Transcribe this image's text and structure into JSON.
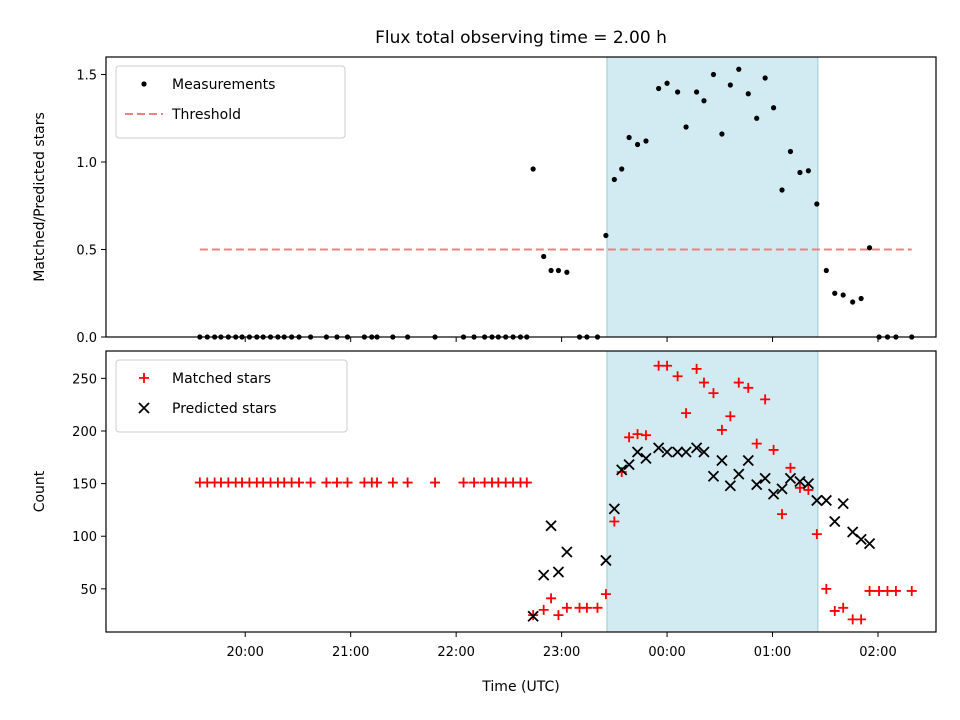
{
  "chart_data": {
    "title": "Flux total observing time = 2.00 h",
    "xlabel": "Time (UTC)",
    "x_unit": "hours of day (UTC), 24.00 = 00:00 next day",
    "xlim": [
      18.68,
      26.55
    ],
    "xticks": [
      {
        "value": 20,
        "label": "20:00"
      },
      {
        "value": 21,
        "label": "21:00"
      },
      {
        "value": 22,
        "label": "22:00"
      },
      {
        "value": 23,
        "label": "23:00"
      },
      {
        "value": 24,
        "label": "00:00"
      },
      {
        "value": 25,
        "label": "01:00"
      },
      {
        "value": 26,
        "label": "02:00"
      }
    ],
    "observing_window": {
      "start": 23.43,
      "end": 25.43,
      "color": "#add8e6"
    },
    "panels": [
      {
        "type": "scatter",
        "ylabel": "Matched/Predicted stars",
        "ylim": [
          0,
          1.6
        ],
        "yticks": [
          0.0,
          0.5,
          1.0,
          1.5
        ],
        "yticklabels": [
          "0.0",
          "0.5",
          "1.0",
          "1.5"
        ],
        "legend": "top-left",
        "threshold": {
          "name": "Threshold",
          "value": 0.5,
          "color": "#f08080",
          "x_range": [
            19.57,
            26.32
          ]
        },
        "series": [
          {
            "name": "Measurements",
            "marker": "dot",
            "color": "#000000",
            "points": [
              [
                19.57,
                0
              ],
              [
                19.64,
                0
              ],
              [
                19.71,
                0
              ],
              [
                19.77,
                0
              ],
              [
                19.84,
                0
              ],
              [
                19.91,
                0
              ],
              [
                19.97,
                0
              ],
              [
                20.04,
                0
              ],
              [
                20.11,
                0
              ],
              [
                20.17,
                0
              ],
              [
                20.24,
                0
              ],
              [
                20.31,
                0
              ],
              [
                20.37,
                0
              ],
              [
                20.44,
                0
              ],
              [
                20.51,
                0
              ],
              [
                20.62,
                0
              ],
              [
                20.77,
                0
              ],
              [
                20.87,
                0
              ],
              [
                20.97,
                0
              ],
              [
                21.13,
                0
              ],
              [
                21.2,
                0
              ],
              [
                21.25,
                0
              ],
              [
                21.4,
                0
              ],
              [
                21.54,
                0
              ],
              [
                21.8,
                0
              ],
              [
                22.07,
                0
              ],
              [
                22.17,
                0
              ],
              [
                22.27,
                0
              ],
              [
                22.34,
                0
              ],
              [
                22.4,
                0
              ],
              [
                22.47,
                0
              ],
              [
                22.54,
                0
              ],
              [
                22.61,
                0
              ],
              [
                22.67,
                0
              ],
              [
                22.73,
                0.96
              ],
              [
                22.83,
                0.46
              ],
              [
                22.9,
                0.38
              ],
              [
                22.97,
                0.38
              ],
              [
                23.05,
                0.37
              ],
              [
                23.17,
                0
              ],
              [
                23.24,
                0
              ],
              [
                23.34,
                0
              ],
              [
                23.42,
                0.58
              ],
              [
                23.5,
                0.9
              ],
              [
                23.57,
                0.96
              ],
              [
                23.64,
                1.14
              ],
              [
                23.72,
                1.1
              ],
              [
                23.8,
                1.12
              ],
              [
                23.92,
                1.42
              ],
              [
                24.0,
                1.45
              ],
              [
                24.1,
                1.4
              ],
              [
                24.18,
                1.2
              ],
              [
                24.28,
                1.4
              ],
              [
                24.35,
                1.35
              ],
              [
                24.44,
                1.5
              ],
              [
                24.52,
                1.16
              ],
              [
                24.6,
                1.44
              ],
              [
                24.68,
                1.53
              ],
              [
                24.77,
                1.39
              ],
              [
                24.85,
                1.25
              ],
              [
                24.93,
                1.48
              ],
              [
                25.01,
                1.31
              ],
              [
                25.09,
                0.84
              ],
              [
                25.17,
                1.06
              ],
              [
                25.26,
                0.94
              ],
              [
                25.34,
                0.95
              ],
              [
                25.42,
                0.76
              ],
              [
                25.51,
                0.38
              ],
              [
                25.59,
                0.25
              ],
              [
                25.67,
                0.24
              ],
              [
                25.76,
                0.2
              ],
              [
                25.84,
                0.22
              ],
              [
                25.92,
                0.51
              ],
              [
                26.01,
                0
              ],
              [
                26.09,
                0
              ],
              [
                26.17,
                0
              ],
              [
                26.32,
                0
              ]
            ]
          }
        ]
      },
      {
        "type": "scatter",
        "ylabel": "Count",
        "ylim": [
          9,
          276
        ],
        "yticks": [
          50,
          100,
          150,
          200,
          250
        ],
        "yticklabels": [
          "50",
          "100",
          "150",
          "200",
          "250"
        ],
        "legend": "top-left",
        "series": [
          {
            "name": "Matched stars",
            "marker": "plus",
            "color": "#ff0000",
            "points": [
              [
                19.57,
                151
              ],
              [
                19.64,
                151
              ],
              [
                19.71,
                151
              ],
              [
                19.77,
                151
              ],
              [
                19.84,
                151
              ],
              [
                19.91,
                151
              ],
              [
                19.97,
                151
              ],
              [
                20.04,
                151
              ],
              [
                20.11,
                151
              ],
              [
                20.17,
                151
              ],
              [
                20.24,
                151
              ],
              [
                20.31,
                151
              ],
              [
                20.37,
                151
              ],
              [
                20.44,
                151
              ],
              [
                20.51,
                151
              ],
              [
                20.62,
                151
              ],
              [
                20.77,
                151
              ],
              [
                20.87,
                151
              ],
              [
                20.97,
                151
              ],
              [
                21.13,
                151
              ],
              [
                21.2,
                151
              ],
              [
                21.25,
                151
              ],
              [
                21.4,
                151
              ],
              [
                21.54,
                151
              ],
              [
                21.8,
                151
              ],
              [
                22.07,
                151
              ],
              [
                22.17,
                151
              ],
              [
                22.27,
                151
              ],
              [
                22.34,
                151
              ],
              [
                22.4,
                151
              ],
              [
                22.47,
                151
              ],
              [
                22.54,
                151
              ],
              [
                22.61,
                151
              ],
              [
                22.67,
                151
              ],
              [
                22.73,
                25
              ],
              [
                22.83,
                30
              ],
              [
                22.9,
                41
              ],
              [
                22.97,
                25
              ],
              [
                23.05,
                32
              ],
              [
                23.17,
                32
              ],
              [
                23.24,
                32
              ],
              [
                23.34,
                32
              ],
              [
                23.42,
                45
              ],
              [
                23.5,
                114
              ],
              [
                23.57,
                161
              ],
              [
                23.64,
                194
              ],
              [
                23.72,
                197
              ],
              [
                23.8,
                196
              ],
              [
                23.92,
                262
              ],
              [
                24.0,
                262
              ],
              [
                24.1,
                252
              ],
              [
                24.18,
                217
              ],
              [
                24.28,
                259
              ],
              [
                24.35,
                246
              ],
              [
                24.44,
                236
              ],
              [
                24.52,
                201
              ],
              [
                24.6,
                214
              ],
              [
                24.68,
                246
              ],
              [
                24.77,
                241
              ],
              [
                24.85,
                188
              ],
              [
                24.93,
                230
              ],
              [
                25.01,
                182
              ],
              [
                25.09,
                121
              ],
              [
                25.17,
                165
              ],
              [
                25.26,
                146
              ],
              [
                25.34,
                144
              ],
              [
                25.42,
                102
              ],
              [
                25.51,
                50
              ],
              [
                25.59,
                29
              ],
              [
                25.67,
                32
              ],
              [
                25.76,
                21
              ],
              [
                25.84,
                21
              ],
              [
                25.92,
                48
              ],
              [
                26.01,
                48
              ],
              [
                26.09,
                48
              ],
              [
                26.17,
                48
              ],
              [
                26.32,
                48
              ]
            ]
          },
          {
            "name": "Predicted stars",
            "marker": "x",
            "color": "#000000",
            "points": [
              [
                22.73,
                24
              ],
              [
                22.83,
                63
              ],
              [
                22.9,
                110
              ],
              [
                22.97,
                66
              ],
              [
                23.05,
                85
              ],
              [
                23.42,
                77
              ],
              [
                23.5,
                126
              ],
              [
                23.57,
                163
              ],
              [
                23.64,
                168
              ],
              [
                23.72,
                180
              ],
              [
                23.8,
                174
              ],
              [
                23.92,
                184
              ],
              [
                24.0,
                180
              ],
              [
                24.1,
                180
              ],
              [
                24.18,
                180
              ],
              [
                24.28,
                184
              ],
              [
                24.35,
                180
              ],
              [
                24.44,
                157
              ],
              [
                24.52,
                172
              ],
              [
                24.6,
                148
              ],
              [
                24.68,
                159
              ],
              [
                24.77,
                172
              ],
              [
                24.85,
                149
              ],
              [
                24.93,
                155
              ],
              [
                25.01,
                140
              ],
              [
                25.09,
                145
              ],
              [
                25.17,
                155
              ],
              [
                25.26,
                152
              ],
              [
                25.34,
                150
              ],
              [
                25.42,
                134
              ],
              [
                25.51,
                134
              ],
              [
                25.59,
                114
              ],
              [
                25.67,
                131
              ],
              [
                25.76,
                104
              ],
              [
                25.84,
                97
              ],
              [
                25.92,
                93
              ]
            ]
          }
        ]
      }
    ]
  }
}
